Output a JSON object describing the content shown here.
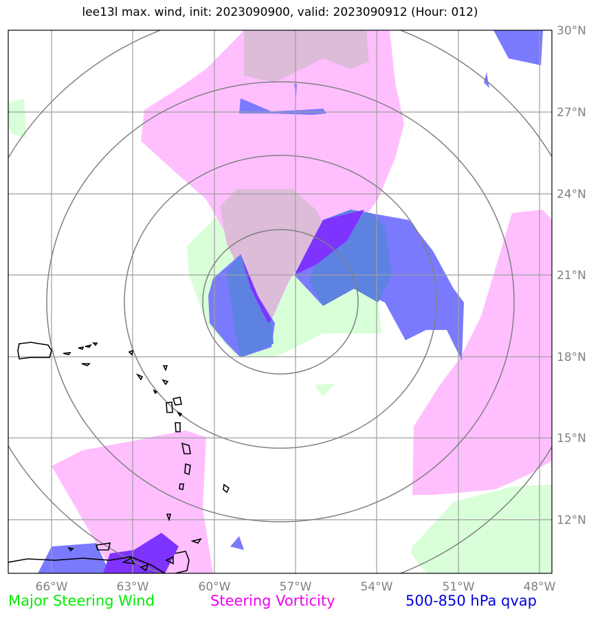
{
  "title": "lee13l max. wind, init: 2023090900, valid: 2023090912 (Hour: 012)",
  "map": {
    "lon_ticks": [
      "66°W",
      "63°W",
      "60°W",
      "57°W",
      "54°W",
      "51°W",
      "48°W"
    ],
    "lat_ticks": [
      "30°N",
      "27°N",
      "24°N",
      "21°N",
      "18°N",
      "15°N",
      "12°N"
    ],
    "colors": {
      "wind": "#d9ffd9",
      "vorticity": "#ffbfff",
      "qvap": "#7a7aff",
      "qvap_dark": "#7f33ff",
      "overlap": "#dcbcd8",
      "grid": "#9e9e9e",
      "rings": "#808080",
      "coast": "#000000"
    }
  },
  "legend": [
    {
      "label": "Major Steering Wind",
      "color": "#00ee00"
    },
    {
      "label": "Steering Vorticity",
      "color": "#ee00ee"
    },
    {
      "label": "500-850 hPa qvap",
      "color": "#0000dd"
    }
  ]
}
